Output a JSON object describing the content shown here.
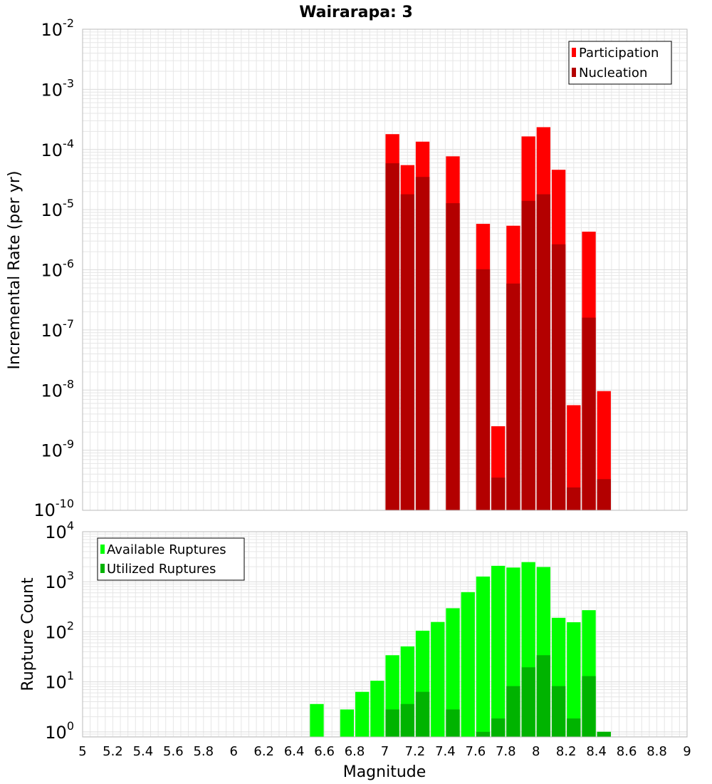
{
  "title": "Wairarapa: 3",
  "xlabel": "Magnitude",
  "colors": {
    "participation": "#ff0000",
    "nucleation": "#b30000",
    "available": "#00ff00",
    "utilized": "#00b300",
    "grid": "#e6e6e6",
    "frame": "#bbbbbb"
  },
  "chart_data": [
    {
      "type": "bar",
      "yscale": "log",
      "ylabel": "Incremental Rate (per yr)",
      "xlim": [
        5,
        9
      ],
      "ylim": [
        1e-10,
        0.01
      ],
      "y_tick_exponents": [
        -10,
        -9,
        -8,
        -7,
        -6,
        -5,
        -4,
        -3,
        -2
      ],
      "grid": true,
      "legend_position": "top-right",
      "x": [
        7.05,
        7.15,
        7.25,
        7.45,
        7.65,
        7.75,
        7.85,
        7.95,
        8.05,
        8.15,
        8.25,
        8.35,
        8.45
      ],
      "series": [
        {
          "name": "Participation",
          "values": [
            0.00018,
            5.5e-05,
            0.000135,
            7.7e-05,
            5.8e-06,
            2.5e-09,
            5.4e-06,
            0.000165,
            0.000235,
            4.6e-05,
            5.6e-09,
            4.3e-06,
            9.6e-09
          ]
        },
        {
          "name": "Nucleation",
          "values": [
            5.9e-05,
            1.8e-05,
            3.5e-05,
            1.28e-05,
            1.02e-06,
            3.5e-10,
            5.9e-07,
            1.4e-05,
            1.8e-05,
            2.65e-06,
            2.4e-10,
            1.6e-07,
            3.3e-10
          ]
        }
      ]
    },
    {
      "type": "bar",
      "yscale": "log",
      "ylabel": "Rupture Count",
      "xlim": [
        5,
        9
      ],
      "ylim": [
        0.79,
        10000
      ],
      "y_tick_exponents": [
        0,
        1,
        2,
        3,
        4
      ],
      "x_ticks": [
        "5",
        "5.2",
        "5.4",
        "5.6",
        "5.8",
        "6",
        "6.2",
        "6.4",
        "6.6",
        "6.8",
        "7",
        "7.2",
        "7.4",
        "7.6",
        "7.8",
        "8",
        "8.2",
        "8.4",
        "8.6",
        "8.8",
        "9"
      ],
      "grid": true,
      "legend_position": "top-left",
      "x": [
        6.55,
        6.75,
        6.85,
        6.95,
        7.05,
        7.15,
        7.25,
        7.35,
        7.45,
        7.55,
        7.65,
        7.75,
        7.85,
        7.95,
        8.05,
        8.15,
        8.25,
        8.35,
        8.45
      ],
      "series": [
        {
          "name": "Available Ruptures",
          "values": [
            3.6,
            2.8,
            6.3,
            10.5,
            34,
            51,
            105,
            157,
            295,
            620,
            1270,
            2080,
            1920,
            2470,
            1970,
            190,
            155,
            270,
            1
          ]
        },
        {
          "name": "Utilized Ruptures",
          "values": [
            null,
            null,
            null,
            null,
            2.8,
            3.6,
            6.3,
            null,
            2.8,
            null,
            1,
            1.85,
            8.2,
            19.5,
            34,
            8.2,
            1.85,
            13,
            1
          ]
        }
      ]
    }
  ]
}
